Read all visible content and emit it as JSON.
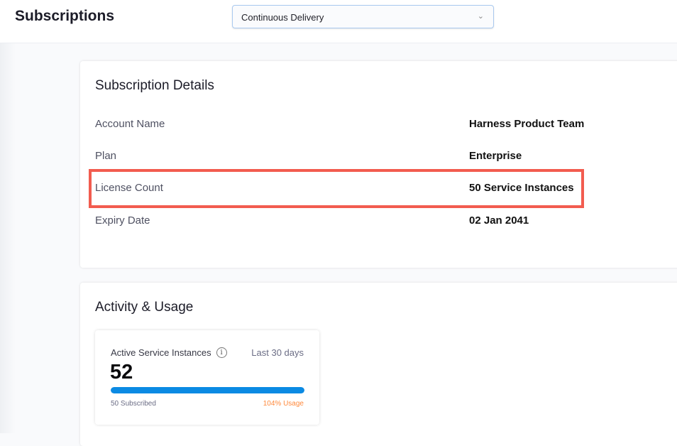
{
  "header": {
    "title": "Subscriptions",
    "module_select": "Continuous Delivery"
  },
  "details": {
    "title": "Subscription Details",
    "rows": [
      {
        "label": "Account Name",
        "value": "Harness Product Team"
      },
      {
        "label": "Plan",
        "value": "Enterprise"
      },
      {
        "label": "License Count",
        "value": "50 Service Instances"
      },
      {
        "label": "Expiry Date",
        "value": "02 Jan 2041"
      }
    ],
    "highlight_color": "#f25c4f"
  },
  "activity": {
    "title": "Activity & Usage",
    "card": {
      "label": "Active Service Instances",
      "period": "Last 30 days",
      "value": "52",
      "subscribed": "50 Subscribed",
      "usage": "104% Usage",
      "usage_percent": 104,
      "bar_color": "#0b8ae3",
      "usage_color": "#ff8a3d"
    }
  }
}
